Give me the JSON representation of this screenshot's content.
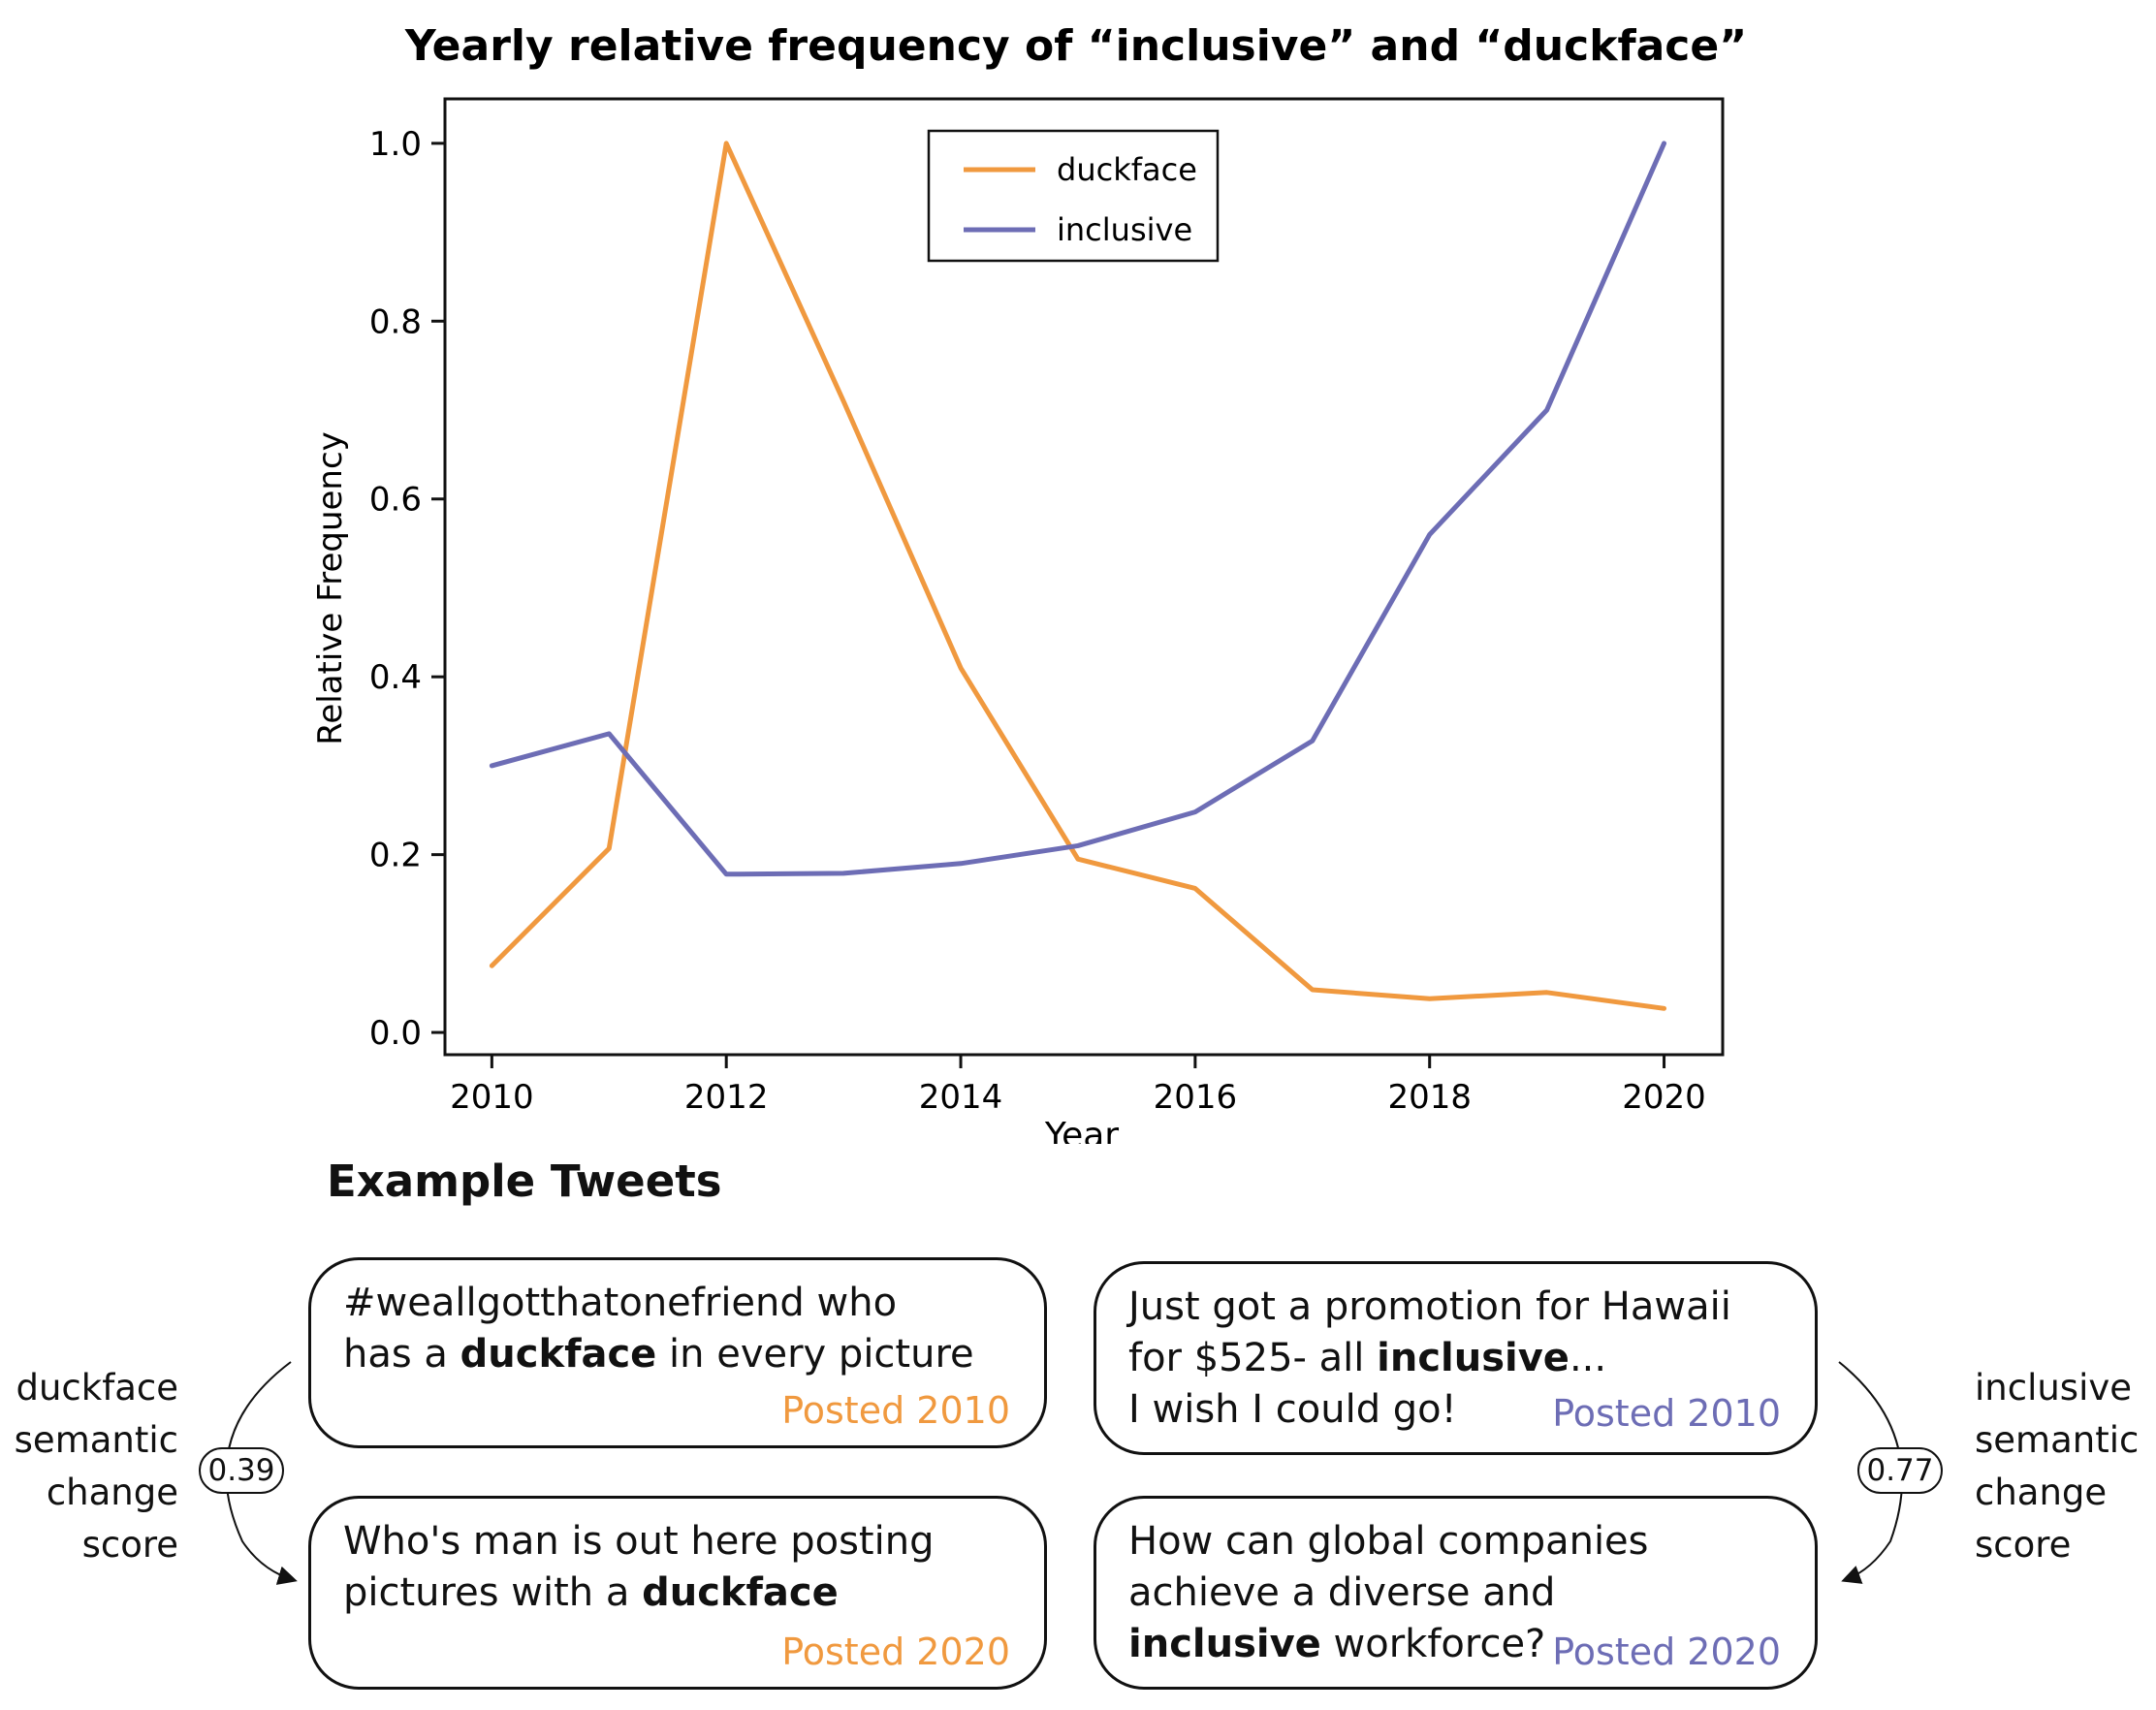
{
  "chart_data": {
    "type": "line",
    "title": "Yearly relative frequency of “inclusive” and “duckface”",
    "xlabel": "Year",
    "ylabel": "Relative Frequency",
    "x": [
      2010,
      2011,
      2012,
      2013,
      2014,
      2015,
      2016,
      2017,
      2018,
      2019,
      2020
    ],
    "xlim": [
      2009.6,
      2020.5
    ],
    "ylim": [
      -0.025,
      1.05
    ],
    "xticks": [
      2010,
      2012,
      2014,
      2016,
      2018,
      2020
    ],
    "xtick_labels": [
      "2010",
      "2012",
      "2014",
      "2016",
      "2018",
      "2020"
    ],
    "yticks": [
      0.0,
      0.2,
      0.4,
      0.6,
      0.8,
      1.0
    ],
    "ytick_labels": [
      "0.0",
      "0.2",
      "0.4",
      "0.6",
      "0.8",
      "1.0"
    ],
    "grid": false,
    "legend_position": "top-center",
    "series": [
      {
        "name": "duckface",
        "color": "#f0993f",
        "values": [
          0.075,
          0.207,
          1.0,
          0.71,
          0.41,
          0.195,
          0.162,
          0.048,
          0.038,
          0.045,
          0.027
        ]
      },
      {
        "name": "inclusive",
        "color": "#6d6db5",
        "values": [
          0.3,
          0.336,
          0.178,
          0.179,
          0.19,
          0.21,
          0.248,
          0.328,
          0.56,
          0.7,
          1.0
        ]
      }
    ]
  },
  "examples": {
    "title": "Example Tweets",
    "duckface": {
      "tweet_2010": {
        "pre": "#weallgotthatonefriend who\nhas a ",
        "bold": "duckface",
        "post": " in every picture",
        "posted": "Posted 2010"
      },
      "tweet_2020": {
        "pre": "Who's man is out here posting\npictures with a ",
        "bold": "duckface",
        "post": "",
        "posted": "Posted 2020"
      },
      "label_lines": [
        "duckface",
        "semantic",
        "change",
        "score"
      ],
      "score": "0.39"
    },
    "inclusive": {
      "tweet_2010": {
        "pre": "Just got a promotion for Hawaii\nfor $525- all ",
        "bold": "inclusive",
        "post": "...\nI wish I could go!",
        "posted": "Posted 2010"
      },
      "tweet_2020": {
        "pre": "How can global companies\nachieve a diverse and\n",
        "bold": "inclusive",
        "post": " workforce?",
        "posted": "Posted 2020"
      },
      "label_lines": [
        "inclusive",
        "semantic",
        "change",
        "score"
      ],
      "score": "0.77"
    }
  },
  "colors": {
    "duckface": "#f0993f",
    "inclusive": "#6d6db5",
    "axis": "#111111"
  }
}
